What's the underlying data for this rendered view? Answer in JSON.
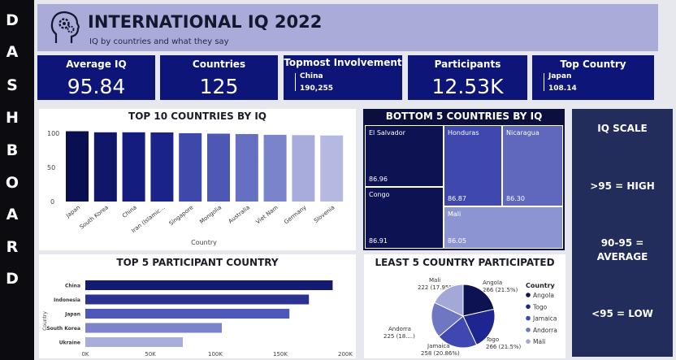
{
  "sidebar": {
    "letters": [
      "D",
      "A",
      "S",
      "H",
      "B",
      "O",
      "A",
      "R",
      "D"
    ]
  },
  "header": {
    "title": "INTERNATIONAL IQ 2022",
    "subtitle": "IQ by countries and what they say",
    "icon": "head-gears-icon"
  },
  "kpis": {
    "avg_iq": {
      "label": "Average IQ",
      "value": "95.84"
    },
    "countries": {
      "label": "Countries",
      "value": "125"
    },
    "involvement": {
      "label": "Topmost Involvement",
      "country": "China",
      "value": "190,255"
    },
    "participants": {
      "label": "Participants",
      "value": "12.53K"
    },
    "top_country": {
      "label": "Top Country",
      "country": "Japan",
      "value": "108.14"
    }
  },
  "top10": {
    "title": "TOP 10 COUNTRIES BY IQ",
    "xlabel": "Country",
    "yticks": [
      "100",
      "50",
      "0"
    ]
  },
  "bottom5": {
    "title": "BOTTOM 5 COUNTRIES BY IQ",
    "cells": [
      {
        "name": "El Salvador",
        "value": "86.96"
      },
      {
        "name": "Honduras",
        "value": "86.87"
      },
      {
        "name": "Nicaragua",
        "value": "86.30"
      },
      {
        "name": "Congo",
        "value": "86.91"
      },
      {
        "name": "Mali",
        "value": "86.05"
      }
    ]
  },
  "scale": {
    "title": "IQ SCALE",
    "high": ">95 = HIGH",
    "avg1": "90-95 =",
    "avg2": "AVERAGE",
    "low": "<95 = LOW"
  },
  "top5": {
    "title": "TOP 5 PARTICIPANT COUNTRY",
    "ylabel": "Country",
    "xticks": [
      "0K",
      "50K",
      "100K",
      "150K",
      "200K"
    ]
  },
  "least5": {
    "title": "LEAST 5 COUNTRY PARTICIPATED",
    "legend_title": "Country",
    "labels": {
      "mali1": "Mali",
      "mali2": "222 (17.95%)",
      "angola1": "Angola",
      "angola2": "266 (21.5%)",
      "togo1": "Togo",
      "togo2": "266 (21.5%)",
      "jamaica1": "Jamaica",
      "jamaica2": "258 (20.86%)",
      "andorra1": "Andorra",
      "andorra2": "225 (18....)"
    }
  },
  "chart_data": [
    {
      "type": "bar",
      "title": "TOP 10 COUNTRIES BY IQ",
      "xlabel": "Country",
      "ylabel": "",
      "categories": [
        "Japan",
        "South Korea",
        "China",
        "Iran (Islamic...",
        "Singapore",
        "Mongolia",
        "Australia",
        "Viet Nam",
        "Germany",
        "Slovenia"
      ],
      "values": [
        108.14,
        106.5,
        106.5,
        106.3,
        105.1,
        104.4,
        103.8,
        102.6,
        102.1,
        101.6
      ],
      "ylim": [
        0,
        110
      ],
      "colors": [
        "#0a0f52",
        "#10176a",
        "#141c7e",
        "#192389",
        "#3d48aa",
        "#4d57b4",
        "#6570c2",
        "#7a84cc",
        "#a7acdc",
        "#b5b9e2"
      ]
    },
    {
      "type": "bar",
      "orientation": "horizontal",
      "title": "TOP 5 PARTICIPANT COUNTRY",
      "xlabel": "",
      "ylabel": "Country",
      "categories": [
        "China",
        "Indonesia",
        "Japan",
        "South Korea",
        "Ukraine"
      ],
      "values": [
        190255,
        172000,
        157000,
        105000,
        75000
      ],
      "xlim": [
        0,
        200000
      ],
      "colors": [
        "#141a72",
        "#2b3290",
        "#4e58b8",
        "#7b83cb",
        "#a8addb"
      ]
    },
    {
      "type": "pie",
      "title": "LEAST 5 COUNTRY PARTICIPATED",
      "categories": [
        "Angola",
        "Togo",
        "Jamaica",
        "Andorra",
        "Mali"
      ],
      "values": [
        266,
        266,
        258,
        225,
        222
      ],
      "colors": [
        "#0d1252",
        "#1c2590",
        "#3e48b0",
        "#6f77c3",
        "#a3a8d9"
      ],
      "legend": "right"
    }
  ]
}
